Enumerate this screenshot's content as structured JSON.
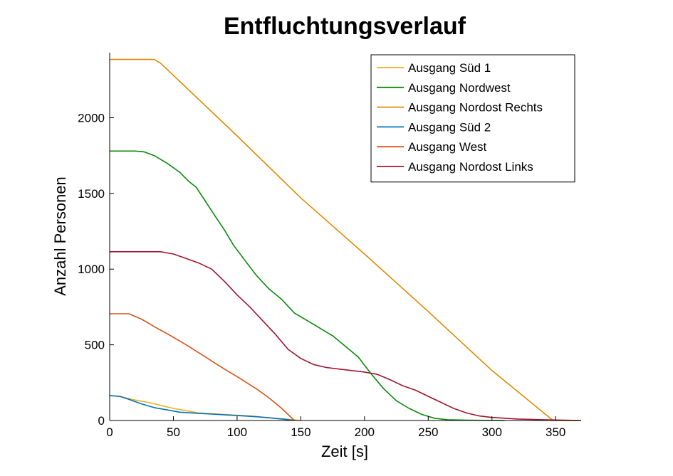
{
  "chart_data": {
    "type": "line",
    "title": "Entfluchtungsverlauf",
    "xlabel": "Zeit [s]",
    "ylabel": "Anzahl Personen",
    "xlim": [
      0,
      370
    ],
    "ylim": [
      0,
      2430
    ],
    "xticks": [
      0,
      50,
      100,
      150,
      200,
      250,
      300,
      350
    ],
    "yticks": [
      0,
      500,
      1000,
      1500,
      2000
    ],
    "grid": false,
    "legend_position": "top-right",
    "series": [
      {
        "name": "Ausgang Süd 1",
        "color": "#EDB120",
        "points": [
          [
            0,
            165
          ],
          [
            10,
            155
          ],
          [
            20,
            135
          ],
          [
            30,
            120
          ],
          [
            40,
            100
          ],
          [
            50,
            80
          ],
          [
            60,
            65
          ],
          [
            70,
            50
          ],
          [
            80,
            45
          ],
          [
            90,
            40
          ],
          [
            100,
            35
          ],
          [
            110,
            30
          ],
          [
            120,
            22
          ],
          [
            130,
            15
          ],
          [
            140,
            8
          ],
          [
            145,
            4
          ],
          [
            150,
            0
          ]
        ]
      },
      {
        "name": "Ausgang Nordwest",
        "color": "#0A8A0A",
        "points": [
          [
            0,
            1780
          ],
          [
            20,
            1780
          ],
          [
            27,
            1775
          ],
          [
            35,
            1750
          ],
          [
            45,
            1700
          ],
          [
            55,
            1640
          ],
          [
            62,
            1580
          ],
          [
            68,
            1540
          ],
          [
            75,
            1450
          ],
          [
            82,
            1360
          ],
          [
            90,
            1260
          ],
          [
            97,
            1160
          ],
          [
            105,
            1070
          ],
          [
            115,
            960
          ],
          [
            125,
            870
          ],
          [
            135,
            800
          ],
          [
            145,
            710
          ],
          [
            155,
            660
          ],
          [
            165,
            610
          ],
          [
            175,
            560
          ],
          [
            185,
            490
          ],
          [
            195,
            420
          ],
          [
            205,
            310
          ],
          [
            215,
            210
          ],
          [
            225,
            130
          ],
          [
            235,
            80
          ],
          [
            245,
            40
          ],
          [
            255,
            15
          ],
          [
            265,
            5
          ],
          [
            280,
            2
          ],
          [
            310,
            0
          ]
        ]
      },
      {
        "name": "Ausgang Nordost Rechts",
        "color": "#E08A00",
        "points": [
          [
            0,
            2385
          ],
          [
            35,
            2385
          ],
          [
            40,
            2360
          ],
          [
            50,
            2280
          ],
          [
            100,
            1880
          ],
          [
            150,
            1470
          ],
          [
            200,
            1100
          ],
          [
            250,
            720
          ],
          [
            300,
            330
          ],
          [
            348,
            0
          ],
          [
            368,
            0
          ]
        ]
      },
      {
        "name": "Ausgang Süd 2",
        "color": "#0072BD",
        "points": [
          [
            0,
            165
          ],
          [
            8,
            160
          ],
          [
            15,
            140
          ],
          [
            25,
            110
          ],
          [
            35,
            85
          ],
          [
            45,
            70
          ],
          [
            55,
            55
          ],
          [
            65,
            50
          ],
          [
            75,
            45
          ],
          [
            85,
            40
          ],
          [
            95,
            35
          ],
          [
            105,
            30
          ],
          [
            115,
            25
          ],
          [
            125,
            18
          ],
          [
            135,
            10
          ],
          [
            140,
            5
          ],
          [
            145,
            0
          ]
        ]
      },
      {
        "name": "Ausgang West",
        "color": "#D95319",
        "points": [
          [
            0,
            705
          ],
          [
            15,
            705
          ],
          [
            25,
            670
          ],
          [
            35,
            620
          ],
          [
            50,
            550
          ],
          [
            60,
            500
          ],
          [
            75,
            420
          ],
          [
            90,
            340
          ],
          [
            100,
            290
          ],
          [
            115,
            210
          ],
          [
            125,
            150
          ],
          [
            135,
            80
          ],
          [
            140,
            40
          ],
          [
            143,
            15
          ],
          [
            145,
            0
          ]
        ]
      },
      {
        "name": "Ausgang Nordost Links",
        "color": "#A2142F",
        "points": [
          [
            0,
            1115
          ],
          [
            40,
            1115
          ],
          [
            50,
            1100
          ],
          [
            60,
            1070
          ],
          [
            70,
            1040
          ],
          [
            80,
            1000
          ],
          [
            90,
            920
          ],
          [
            100,
            830
          ],
          [
            110,
            750
          ],
          [
            120,
            660
          ],
          [
            130,
            570
          ],
          [
            140,
            470
          ],
          [
            150,
            410
          ],
          [
            160,
            370
          ],
          [
            170,
            350
          ],
          [
            180,
            340
          ],
          [
            190,
            330
          ],
          [
            200,
            320
          ],
          [
            210,
            305
          ],
          [
            220,
            270
          ],
          [
            230,
            230
          ],
          [
            240,
            200
          ],
          [
            250,
            160
          ],
          [
            260,
            120
          ],
          [
            270,
            80
          ],
          [
            280,
            50
          ],
          [
            290,
            30
          ],
          [
            300,
            20
          ],
          [
            320,
            10
          ],
          [
            340,
            5
          ],
          [
            370,
            0
          ]
        ]
      }
    ]
  }
}
